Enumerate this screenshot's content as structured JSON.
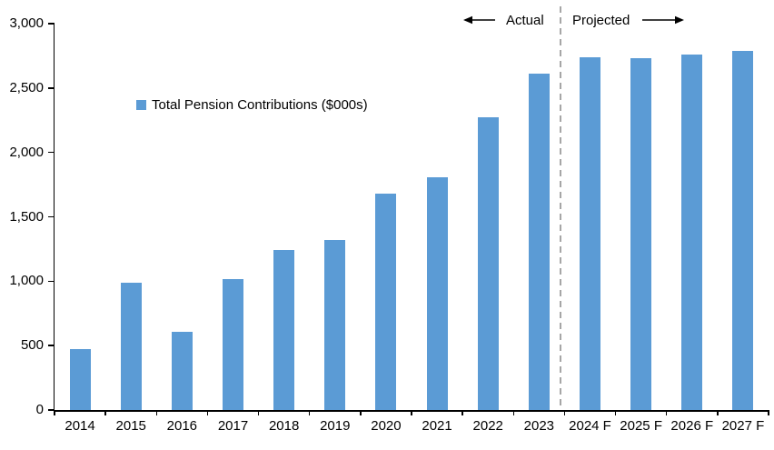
{
  "chart_data": {
    "type": "bar",
    "title": "",
    "legend": "Total Pension Contributions ($000s)",
    "categories": [
      "2014",
      "2015",
      "2016",
      "2017",
      "2018",
      "2019",
      "2020",
      "2021",
      "2022",
      "2023",
      "2024 F",
      "2025 F",
      "2026 F",
      "2027 F"
    ],
    "values": [
      470,
      990,
      610,
      1020,
      1240,
      1320,
      1680,
      1810,
      2270,
      2610,
      2740,
      2730,
      2760,
      2790
    ],
    "xlabel": "",
    "ylabel": "",
    "ylim": [
      0,
      3000
    ],
    "ytick_interval": 500,
    "ytick_labels": [
      "0",
      "500",
      "1,000",
      "1,500",
      "2,000",
      "2,500",
      "3,000"
    ],
    "grid": false,
    "legend_position": "inside-top-left",
    "annotations": {
      "actual": "Actual",
      "projected": "Projected",
      "divider_after_index": 10
    },
    "colors": {
      "bar": "#5B9BD5",
      "divider": "#A6A6A6",
      "axis": "#000000",
      "text": "#000000"
    }
  }
}
